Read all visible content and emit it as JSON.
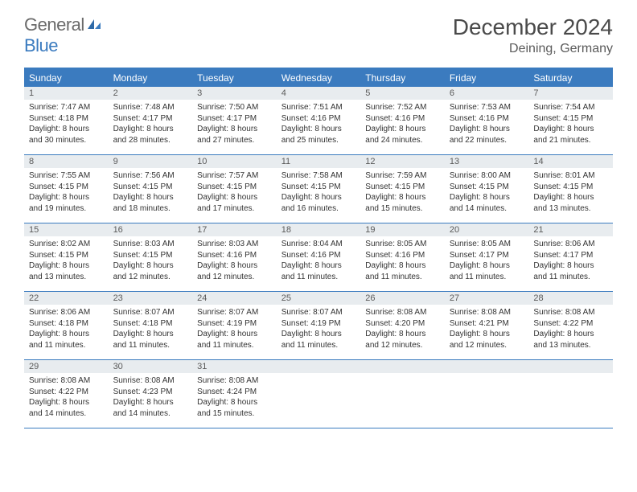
{
  "logo": {
    "text1": "General",
    "text2": "Blue"
  },
  "title": "December 2024",
  "location": "Deining, Germany",
  "colors": {
    "header_bg": "#3b7bbf",
    "header_text": "#ffffff",
    "daynum_bg": "#e8ecef",
    "daynum_text": "#5a5a5a",
    "body_text": "#333333",
    "border": "#3b7bbf",
    "logo_gray": "#6a6a6a",
    "logo_blue": "#3b7bbf"
  },
  "day_headers": [
    "Sunday",
    "Monday",
    "Tuesday",
    "Wednesday",
    "Thursday",
    "Friday",
    "Saturday"
  ],
  "weeks": [
    [
      {
        "n": "1",
        "sr": "Sunrise: 7:47 AM",
        "ss": "Sunset: 4:18 PM",
        "d1": "Daylight: 8 hours",
        "d2": "and 30 minutes."
      },
      {
        "n": "2",
        "sr": "Sunrise: 7:48 AM",
        "ss": "Sunset: 4:17 PM",
        "d1": "Daylight: 8 hours",
        "d2": "and 28 minutes."
      },
      {
        "n": "3",
        "sr": "Sunrise: 7:50 AM",
        "ss": "Sunset: 4:17 PM",
        "d1": "Daylight: 8 hours",
        "d2": "and 27 minutes."
      },
      {
        "n": "4",
        "sr": "Sunrise: 7:51 AM",
        "ss": "Sunset: 4:16 PM",
        "d1": "Daylight: 8 hours",
        "d2": "and 25 minutes."
      },
      {
        "n": "5",
        "sr": "Sunrise: 7:52 AM",
        "ss": "Sunset: 4:16 PM",
        "d1": "Daylight: 8 hours",
        "d2": "and 24 minutes."
      },
      {
        "n": "6",
        "sr": "Sunrise: 7:53 AM",
        "ss": "Sunset: 4:16 PM",
        "d1": "Daylight: 8 hours",
        "d2": "and 22 minutes."
      },
      {
        "n": "7",
        "sr": "Sunrise: 7:54 AM",
        "ss": "Sunset: 4:15 PM",
        "d1": "Daylight: 8 hours",
        "d2": "and 21 minutes."
      }
    ],
    [
      {
        "n": "8",
        "sr": "Sunrise: 7:55 AM",
        "ss": "Sunset: 4:15 PM",
        "d1": "Daylight: 8 hours",
        "d2": "and 19 minutes."
      },
      {
        "n": "9",
        "sr": "Sunrise: 7:56 AM",
        "ss": "Sunset: 4:15 PM",
        "d1": "Daylight: 8 hours",
        "d2": "and 18 minutes."
      },
      {
        "n": "10",
        "sr": "Sunrise: 7:57 AM",
        "ss": "Sunset: 4:15 PM",
        "d1": "Daylight: 8 hours",
        "d2": "and 17 minutes."
      },
      {
        "n": "11",
        "sr": "Sunrise: 7:58 AM",
        "ss": "Sunset: 4:15 PM",
        "d1": "Daylight: 8 hours",
        "d2": "and 16 minutes."
      },
      {
        "n": "12",
        "sr": "Sunrise: 7:59 AM",
        "ss": "Sunset: 4:15 PM",
        "d1": "Daylight: 8 hours",
        "d2": "and 15 minutes."
      },
      {
        "n": "13",
        "sr": "Sunrise: 8:00 AM",
        "ss": "Sunset: 4:15 PM",
        "d1": "Daylight: 8 hours",
        "d2": "and 14 minutes."
      },
      {
        "n": "14",
        "sr": "Sunrise: 8:01 AM",
        "ss": "Sunset: 4:15 PM",
        "d1": "Daylight: 8 hours",
        "d2": "and 13 minutes."
      }
    ],
    [
      {
        "n": "15",
        "sr": "Sunrise: 8:02 AM",
        "ss": "Sunset: 4:15 PM",
        "d1": "Daylight: 8 hours",
        "d2": "and 13 minutes."
      },
      {
        "n": "16",
        "sr": "Sunrise: 8:03 AM",
        "ss": "Sunset: 4:15 PM",
        "d1": "Daylight: 8 hours",
        "d2": "and 12 minutes."
      },
      {
        "n": "17",
        "sr": "Sunrise: 8:03 AM",
        "ss": "Sunset: 4:16 PM",
        "d1": "Daylight: 8 hours",
        "d2": "and 12 minutes."
      },
      {
        "n": "18",
        "sr": "Sunrise: 8:04 AM",
        "ss": "Sunset: 4:16 PM",
        "d1": "Daylight: 8 hours",
        "d2": "and 11 minutes."
      },
      {
        "n": "19",
        "sr": "Sunrise: 8:05 AM",
        "ss": "Sunset: 4:16 PM",
        "d1": "Daylight: 8 hours",
        "d2": "and 11 minutes."
      },
      {
        "n": "20",
        "sr": "Sunrise: 8:05 AM",
        "ss": "Sunset: 4:17 PM",
        "d1": "Daylight: 8 hours",
        "d2": "and 11 minutes."
      },
      {
        "n": "21",
        "sr": "Sunrise: 8:06 AM",
        "ss": "Sunset: 4:17 PM",
        "d1": "Daylight: 8 hours",
        "d2": "and 11 minutes."
      }
    ],
    [
      {
        "n": "22",
        "sr": "Sunrise: 8:06 AM",
        "ss": "Sunset: 4:18 PM",
        "d1": "Daylight: 8 hours",
        "d2": "and 11 minutes."
      },
      {
        "n": "23",
        "sr": "Sunrise: 8:07 AM",
        "ss": "Sunset: 4:18 PM",
        "d1": "Daylight: 8 hours",
        "d2": "and 11 minutes."
      },
      {
        "n": "24",
        "sr": "Sunrise: 8:07 AM",
        "ss": "Sunset: 4:19 PM",
        "d1": "Daylight: 8 hours",
        "d2": "and 11 minutes."
      },
      {
        "n": "25",
        "sr": "Sunrise: 8:07 AM",
        "ss": "Sunset: 4:19 PM",
        "d1": "Daylight: 8 hours",
        "d2": "and 11 minutes."
      },
      {
        "n": "26",
        "sr": "Sunrise: 8:08 AM",
        "ss": "Sunset: 4:20 PM",
        "d1": "Daylight: 8 hours",
        "d2": "and 12 minutes."
      },
      {
        "n": "27",
        "sr": "Sunrise: 8:08 AM",
        "ss": "Sunset: 4:21 PM",
        "d1": "Daylight: 8 hours",
        "d2": "and 12 minutes."
      },
      {
        "n": "28",
        "sr": "Sunrise: 8:08 AM",
        "ss": "Sunset: 4:22 PM",
        "d1": "Daylight: 8 hours",
        "d2": "and 13 minutes."
      }
    ],
    [
      {
        "n": "29",
        "sr": "Sunrise: 8:08 AM",
        "ss": "Sunset: 4:22 PM",
        "d1": "Daylight: 8 hours",
        "d2": "and 14 minutes."
      },
      {
        "n": "30",
        "sr": "Sunrise: 8:08 AM",
        "ss": "Sunset: 4:23 PM",
        "d1": "Daylight: 8 hours",
        "d2": "and 14 minutes."
      },
      {
        "n": "31",
        "sr": "Sunrise: 8:08 AM",
        "ss": "Sunset: 4:24 PM",
        "d1": "Daylight: 8 hours",
        "d2": "and 15 minutes."
      },
      {
        "empty": true
      },
      {
        "empty": true
      },
      {
        "empty": true
      },
      {
        "empty": true
      }
    ]
  ]
}
